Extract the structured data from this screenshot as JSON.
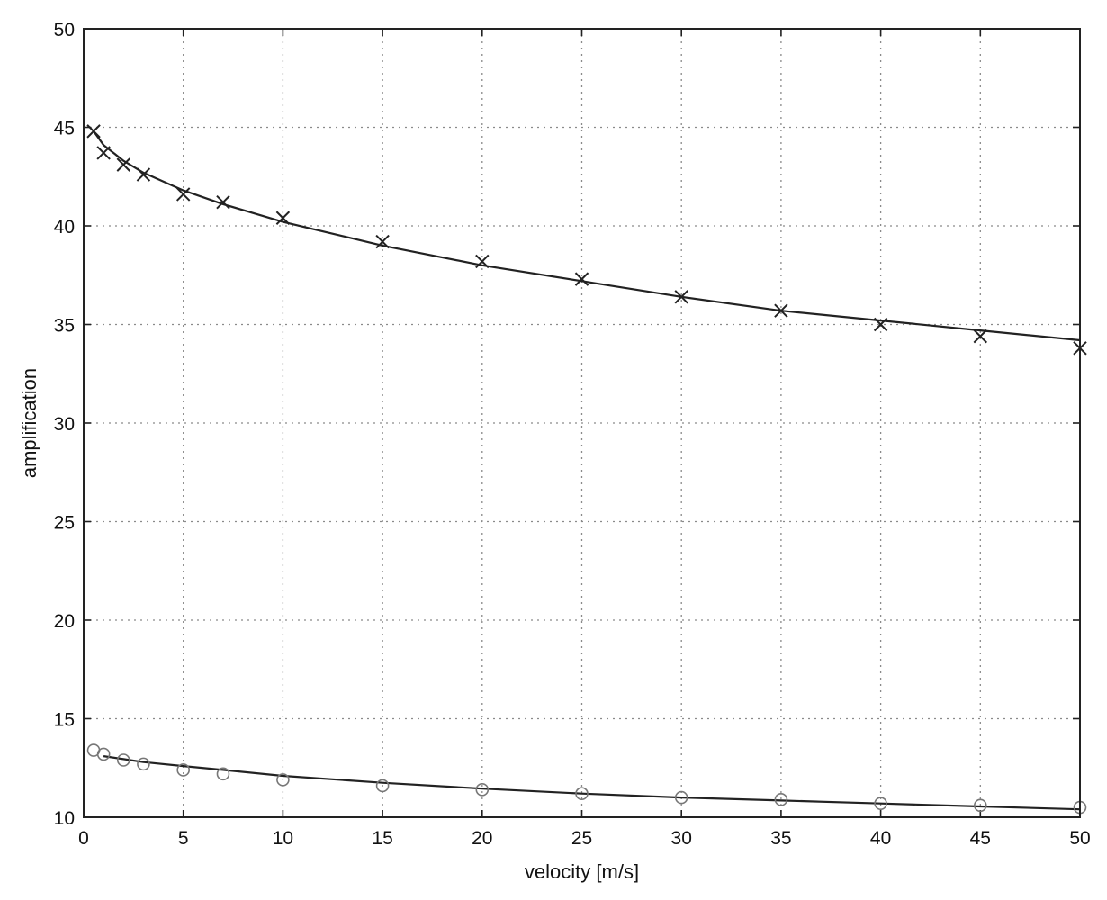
{
  "chart_data": {
    "type": "line",
    "title": "",
    "xlabel": "velocity [m/s]",
    "ylabel": "amplification",
    "xlim": [
      0,
      50
    ],
    "ylim": [
      10,
      50
    ],
    "x_ticks": [
      0,
      5,
      10,
      15,
      20,
      25,
      30,
      35,
      40,
      45,
      50
    ],
    "y_ticks": [
      10,
      15,
      20,
      25,
      30,
      35,
      40,
      45,
      50
    ],
    "grid": true,
    "legend": "none",
    "series": [
      {
        "marker": "x",
        "color": "#222222",
        "points": [
          [
            0.5,
            44.8
          ],
          [
            1,
            43.7
          ],
          [
            2,
            43.1
          ],
          [
            3,
            42.6
          ],
          [
            5,
            41.6
          ],
          [
            7,
            41.2
          ],
          [
            10,
            40.4
          ],
          [
            15,
            39.2
          ],
          [
            20,
            38.2
          ],
          [
            25,
            37.3
          ],
          [
            30,
            36.4
          ],
          [
            35,
            35.7
          ],
          [
            40,
            35.0
          ],
          [
            45,
            34.4
          ],
          [
            50,
            33.8
          ]
        ],
        "fit": [
          [
            0.5,
            44.8
          ],
          [
            1,
            44.1
          ],
          [
            2,
            43.3
          ],
          [
            3,
            42.7
          ],
          [
            5,
            41.8
          ],
          [
            7,
            41.1
          ],
          [
            10,
            40.2
          ],
          [
            15,
            39.0
          ],
          [
            20,
            38.0
          ],
          [
            25,
            37.2
          ],
          [
            30,
            36.4
          ],
          [
            35,
            35.7
          ],
          [
            40,
            35.2
          ],
          [
            45,
            34.7
          ],
          [
            50,
            34.2
          ]
        ]
      },
      {
        "marker": "o",
        "color": "#777777",
        "points": [
          [
            0.5,
            13.4
          ],
          [
            1,
            13.2
          ],
          [
            2,
            12.9
          ],
          [
            3,
            12.7
          ],
          [
            5,
            12.4
          ],
          [
            7,
            12.2
          ],
          [
            10,
            11.9
          ],
          [
            15,
            11.6
          ],
          [
            20,
            11.4
          ],
          [
            25,
            11.2
          ],
          [
            30,
            11.0
          ],
          [
            35,
            10.9
          ],
          [
            40,
            10.7
          ],
          [
            45,
            10.6
          ],
          [
            50,
            10.5
          ]
        ],
        "fit": [
          [
            1,
            13.1
          ],
          [
            2,
            12.95
          ],
          [
            3,
            12.8
          ],
          [
            5,
            12.6
          ],
          [
            7,
            12.4
          ],
          [
            10,
            12.1
          ],
          [
            15,
            11.75
          ],
          [
            20,
            11.45
          ],
          [
            25,
            11.2
          ],
          [
            30,
            11.0
          ],
          [
            35,
            10.85
          ],
          [
            40,
            10.7
          ],
          [
            45,
            10.55
          ],
          [
            50,
            10.4
          ]
        ]
      }
    ]
  }
}
